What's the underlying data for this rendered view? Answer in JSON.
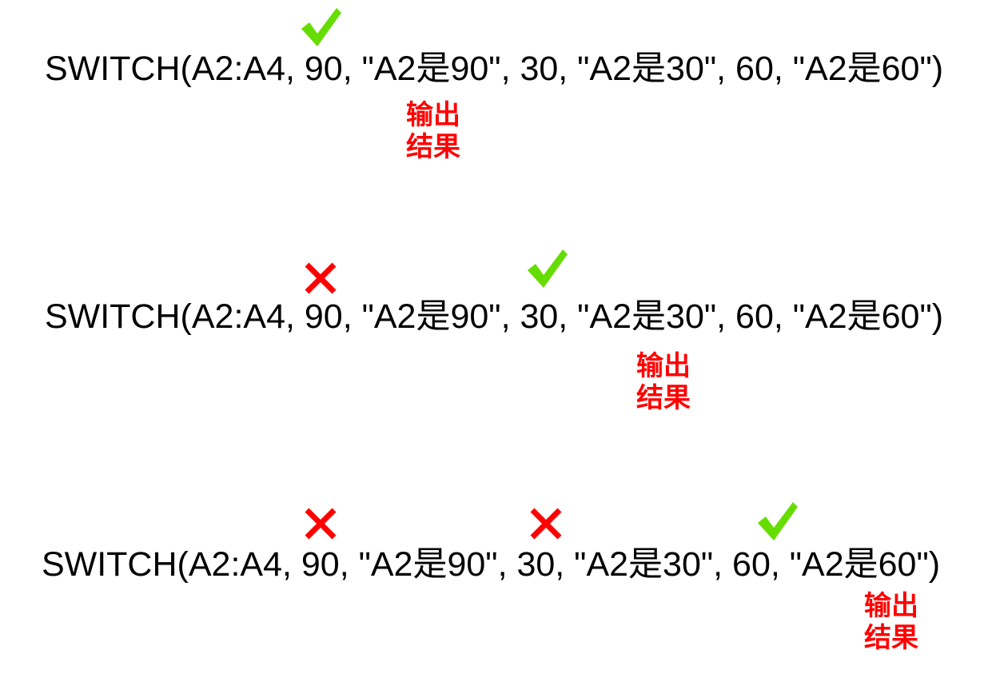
{
  "colors": {
    "check": "#66dd00",
    "cross": "#ff0000",
    "label": "#ff0000",
    "text": "#000000"
  },
  "icons": {
    "pass": "checkmark-icon",
    "fail": "cross-icon"
  },
  "rows": [
    {
      "formula": "SWITCH(A2:A4, 90, \"A2是90\", 30, \"A2是30\", 60, \"A2是60\")",
      "marks": [
        "checkmark-icon"
      ],
      "output_line1": "输出",
      "output_line2": "结果"
    },
    {
      "formula": "SWITCH(A2:A4, 90, \"A2是90\", 30, \"A2是30\", 60, \"A2是60\")",
      "marks": [
        "cross-icon",
        "checkmark-icon"
      ],
      "output_line1": "输出",
      "output_line2": "结果"
    },
    {
      "formula": "SWITCH(A2:A4, 90, \"A2是90\", 30, \"A2是30\", 60, \"A2是60\")",
      "marks": [
        "cross-icon",
        "cross-icon",
        "checkmark-icon"
      ],
      "output_line1": "输出",
      "output_line2": "结果"
    }
  ]
}
